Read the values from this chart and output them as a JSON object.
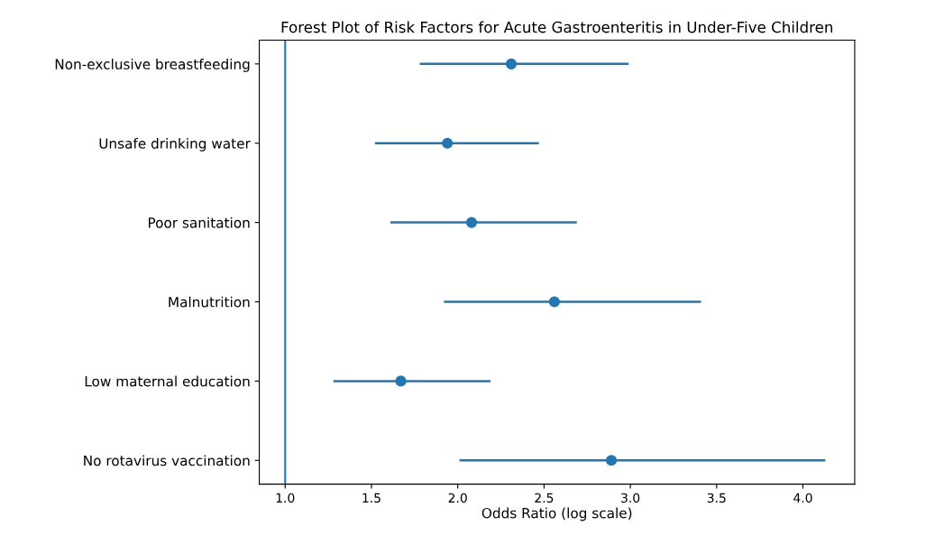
{
  "chart_data": {
    "type": "scatter",
    "orientation": "horizontal",
    "title": "Forest Plot of Risk Factors for Acute Gastroenteritis in Under-Five Children",
    "xlabel": "Odds Ratio (log scale)",
    "categories": [
      "Non-exclusive breastfeeding",
      "Unsafe drinking water",
      "Poor sanitation",
      "Malnutrition",
      "Low maternal education",
      "No rotavirus vaccination"
    ],
    "values": [
      2.31,
      1.94,
      2.08,
      2.56,
      1.67,
      2.89
    ],
    "errors": [
      [
        1.78,
        2.99
      ],
      [
        1.52,
        2.47
      ],
      [
        1.61,
        2.69
      ],
      [
        1.92,
        3.41
      ],
      [
        1.28,
        2.19
      ],
      [
        2.01,
        4.13
      ]
    ],
    "color": "#1f77b4",
    "marker": "circle",
    "xlim": [
      0.85,
      4.3
    ],
    "xticks": [
      {
        "value": 1,
        "label": "1.0"
      },
      {
        "value": 1.5,
        "label": "1.5"
      },
      {
        "value": 2,
        "label": "2.0"
      },
      {
        "value": 2.5,
        "label": "2.5"
      },
      {
        "value": 3,
        "label": "3.0"
      },
      {
        "value": 3.5,
        "label": "3.5"
      },
      {
        "value": 4,
        "label": "4.0"
      }
    ],
    "ref_lines": [
      {
        "axis": "x",
        "value": 1,
        "color": "#1f77b4",
        "line_style": "solid"
      }
    ],
    "grid": false,
    "legend": false
  }
}
